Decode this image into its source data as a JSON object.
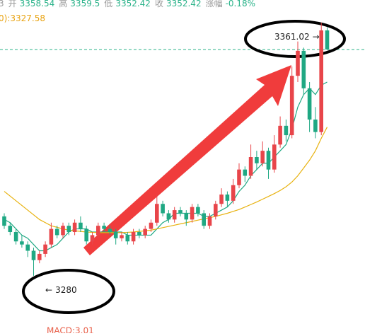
{
  "chart_data": {
    "type": "candlestick",
    "header": {
      "prefix": "3",
      "labels": [
        "开",
        "高",
        "低",
        "收",
        "涨幅"
      ],
      "change": "-0.18%"
    },
    "ma_label": {
      "prefix": "0):"
    },
    "high_marker": "→",
    "low_marker": "←",
    "macd": "MACD:3.01",
    "up_color": "#e8454a",
    "down_color": "#1fa883",
    "ylim": [
      3270,
      3366
    ],
    "ohlc": [
      [
        3299,
        3300,
        3295,
        3296
      ],
      [
        3296,
        3297,
        3293,
        3294
      ],
      [
        3294,
        3295,
        3290,
        3291
      ],
      [
        3291,
        3293,
        3289,
        3290
      ],
      [
        3290,
        3291,
        3286,
        3288
      ],
      [
        3288,
        3289,
        3280.0,
        3285
      ],
      [
        3285,
        3288,
        3284,
        3287
      ],
      [
        3287,
        3291,
        3286,
        3290
      ],
      [
        3290,
        3297,
        3289,
        3295
      ],
      [
        3295,
        3296,
        3292,
        3293
      ],
      [
        3293,
        3297,
        3292,
        3296
      ],
      [
        3296,
        3297,
        3293,
        3294
      ],
      [
        3294,
        3298,
        3293,
        3297
      ],
      [
        3297,
        3299,
        3294,
        3295
      ],
      [
        3295,
        3296,
        3290,
        3291
      ],
      [
        3291,
        3294,
        3290,
        3293
      ],
      [
        3293,
        3297,
        3292,
        3296
      ],
      [
        3296,
        3297,
        3294,
        3295
      ],
      [
        3295,
        3296,
        3293,
        3294
      ],
      [
        3294,
        3295,
        3290,
        3292
      ],
      [
        3292,
        3294,
        3291,
        3293
      ],
      [
        3293,
        3294,
        3290,
        3291
      ],
      [
        3291,
        3295,
        3290,
        3294
      ],
      [
        3294,
        3295,
        3292,
        3293
      ],
      [
        3293,
        3296,
        3292,
        3295
      ],
      [
        3295,
        3298,
        3294,
        3297
      ],
      [
        3297,
        3306,
        3296,
        3303
      ],
      [
        3303,
        3304,
        3299,
        3300
      ],
      [
        3300,
        3301,
        3297,
        3298
      ],
      [
        3298,
        3302,
        3297,
        3301
      ],
      [
        3301,
        3302,
        3299,
        3300
      ],
      [
        3300,
        3301,
        3296,
        3298
      ],
      [
        3298,
        3303,
        3297,
        3302
      ],
      [
        3302,
        3303,
        3299,
        3300
      ],
      [
        3300,
        3301,
        3295,
        3296
      ],
      [
        3296,
        3300,
        3295,
        3299
      ],
      [
        3299,
        3304,
        3298,
        3303
      ],
      [
        3303,
        3308,
        3302,
        3306
      ],
      [
        3306,
        3307,
        3302,
        3304
      ],
      [
        3304,
        3311,
        3303,
        3309
      ],
      [
        3309,
        3316,
        3308,
        3314
      ],
      [
        3314,
        3315,
        3310,
        3312
      ],
      [
        3312,
        3322,
        3311,
        3318
      ],
      [
        3318,
        3320,
        3314,
        3316
      ],
      [
        3316,
        3323,
        3315,
        3320
      ],
      [
        3320,
        3321,
        3311,
        3314
      ],
      [
        3314,
        3325,
        3313,
        3322
      ],
      [
        3322,
        3331,
        3321,
        3328
      ],
      [
        3328,
        3330,
        3323,
        3325
      ],
      [
        3325,
        3347,
        3324,
        3344
      ],
      [
        3344,
        3355,
        3342,
        3352
      ],
      [
        3352,
        3353,
        3338,
        3340
      ],
      [
        3340,
        3342,
        3326,
        3330
      ],
      [
        3330,
        3334,
        3324,
        3326
      ],
      [
        3326,
        3361.02,
        3325,
        3358.54
      ],
      [
        3358.54,
        3359.5,
        3352.42,
        3352.42
      ]
    ],
    "low_index": 5,
    "high_index": 54,
    "lines": [
      {
        "color": "#1fa883",
        "values": [
          3298,
          3297,
          3295,
          3293,
          3292,
          3290,
          3288,
          3288,
          3289,
          3290,
          3292,
          3294,
          3295,
          3295,
          3295,
          3294,
          3294,
          3294,
          3294,
          3294,
          3294,
          3293,
          3293,
          3293,
          3293,
          3293,
          3295,
          3297,
          3298,
          3300,
          3300,
          3300,
          3300,
          3300,
          3299,
          3299,
          3300,
          3301,
          3302,
          3304,
          3307,
          3309,
          3312,
          3314,
          3316,
          3316,
          3318,
          3320,
          3322,
          3327,
          3334,
          3338,
          3340,
          3338,
          3341,
          3342
        ]
      },
      {
        "color": "#e8b20f",
        "values": [
          3307,
          3305.5,
          3304,
          3302.5,
          3301,
          3299.5,
          3298,
          3297,
          3296,
          3295.5,
          3295,
          3294.6,
          3294.4,
          3294.2,
          3294,
          3293.9,
          3293.8,
          3293.8,
          3293.8,
          3293.8,
          3293.8,
          3293.9,
          3294,
          3294.2,
          3294.4,
          3294.6,
          3295,
          3295.4,
          3295.8,
          3296.2,
          3296.6,
          3297,
          3297.4,
          3297.8,
          3298.2,
          3298.6,
          3299,
          3299.5,
          3300,
          3300.6,
          3301.2,
          3302,
          3302.8,
          3303.6,
          3304.5,
          3305.4,
          3306.3,
          3307.3,
          3308.5,
          3310,
          3312,
          3314.5,
          3317,
          3320,
          3324,
          3327.58
        ]
      }
    ]
  }
}
